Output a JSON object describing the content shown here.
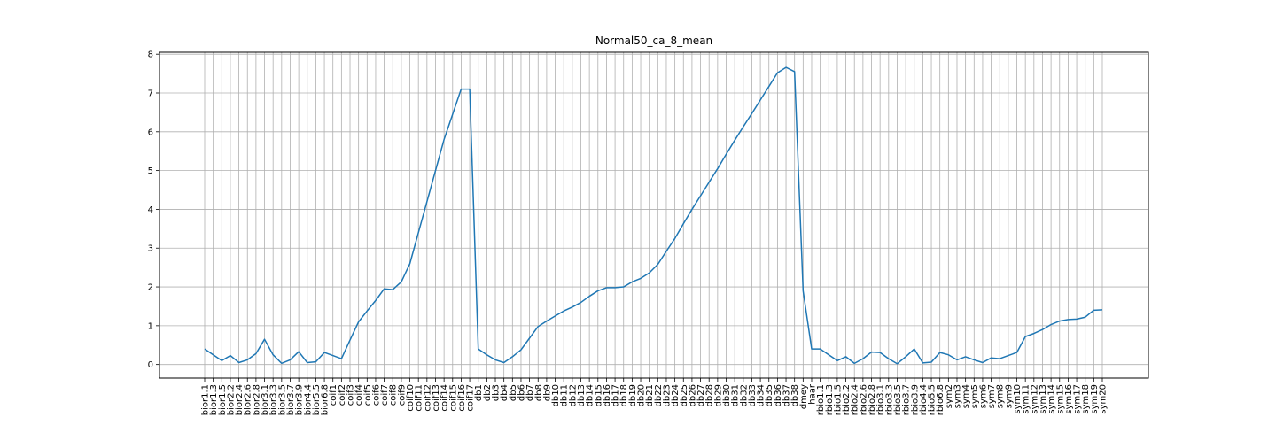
{
  "chart_data": {
    "type": "line",
    "title": "Normal50_ca_8_mean",
    "xlabel": "",
    "ylabel": "",
    "ylim": [
      -0.35,
      8.05
    ],
    "yticks": [
      0,
      1,
      2,
      3,
      4,
      5,
      6,
      7,
      8
    ],
    "grid": true,
    "line_color": "#1f77b4",
    "categories": [
      "bior1.1",
      "bior1.3",
      "bior1.5",
      "bior2.2",
      "bior2.4",
      "bior2.6",
      "bior2.8",
      "bior3.1",
      "bior3.3",
      "bior3.5",
      "bior3.7",
      "bior3.9",
      "bior4.4",
      "bior5.5",
      "bior6.8",
      "coif1",
      "coif2",
      "coif3",
      "coif4",
      "coif5",
      "coif6",
      "coif7",
      "coif8",
      "coif9",
      "coif10",
      "coif11",
      "coif12",
      "coif13",
      "coif14",
      "coif15",
      "coif16",
      "coif17",
      "db1",
      "db2",
      "db3",
      "db4",
      "db5",
      "db6",
      "db7",
      "db8",
      "db9",
      "db10",
      "db11",
      "db12",
      "db13",
      "db14",
      "db15",
      "db16",
      "db17",
      "db18",
      "db19",
      "db20",
      "db21",
      "db22",
      "db23",
      "db24",
      "db25",
      "db26",
      "db27",
      "db28",
      "db29",
      "db30",
      "db31",
      "db32",
      "db33",
      "db34",
      "db35",
      "db36",
      "db37",
      "db38",
      "dmey",
      "haar",
      "rbio1.1",
      "rbio1.3",
      "rbio1.5",
      "rbio2.2",
      "rbio2.4",
      "rbio2.6",
      "rbio2.8",
      "rbio3.1",
      "rbio3.3",
      "rbio3.5",
      "rbio3.7",
      "rbio3.9",
      "rbio4.4",
      "rbio5.5",
      "rbio6.8",
      "sym2",
      "sym3",
      "sym4",
      "sym5",
      "sym6",
      "sym7",
      "sym8",
      "sym9",
      "sym10",
      "sym11",
      "sym12",
      "sym13",
      "sym14",
      "sym15",
      "sym16",
      "sym17",
      "sym18",
      "sym19",
      "sym20"
    ],
    "series": [
      {
        "values": [
          0.4,
          0.25,
          0.1,
          0.23,
          0.05,
          0.12,
          0.28,
          0.65,
          0.25,
          0.03,
          0.12,
          0.33,
          0.05,
          0.07,
          0.31,
          0.23,
          0.15,
          0.63,
          1.1,
          1.38,
          1.65,
          1.95,
          1.93,
          2.13,
          2.6,
          3.4,
          4.2,
          5.0,
          5.8,
          6.45,
          7.1,
          7.1,
          0.4,
          0.25,
          0.12,
          0.05,
          0.2,
          0.38,
          0.68,
          0.98,
          1.12,
          1.25,
          1.38,
          1.48,
          1.6,
          1.76,
          1.9,
          1.98,
          1.98,
          2.0,
          2.13,
          2.22,
          2.36,
          2.58,
          2.92,
          3.25,
          3.63,
          4.0,
          4.35,
          4.7,
          5.05,
          5.42,
          5.78,
          6.13,
          6.47,
          6.82,
          7.17,
          7.52,
          7.66,
          7.55,
          1.9,
          0.4,
          0.4,
          0.25,
          0.1,
          0.2,
          0.03,
          0.15,
          0.32,
          0.31,
          0.15,
          0.02,
          0.2,
          0.4,
          0.04,
          0.06,
          0.31,
          0.25,
          0.12,
          0.2,
          0.12,
          0.05,
          0.17,
          0.15,
          0.23,
          0.31,
          0.72,
          0.8,
          0.9,
          1.03,
          1.12,
          1.16,
          1.17,
          1.22,
          1.4,
          1.41
        ]
      }
    ]
  }
}
